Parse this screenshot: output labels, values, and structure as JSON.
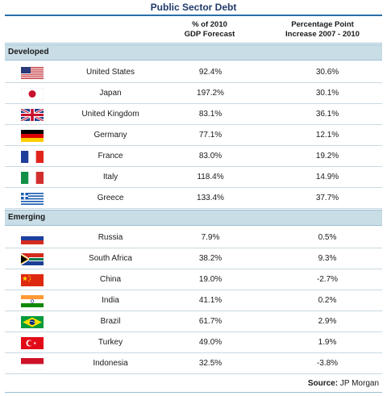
{
  "chart_data": {
    "type": "table",
    "title": "Public Sector Debt",
    "columns": [
      "% of 2010\nGDP Forecast",
      "Percentage Point\nIncrease 2007 - 2010"
    ],
    "column_lines": [
      [
        "% of 2010",
        "GDP Forecast"
      ],
      [
        "Percentage Point",
        "Increase 2007 - 2010"
      ]
    ],
    "groups": [
      {
        "name": "Developed",
        "rows": [
          {
            "country": "United States",
            "flag": "us-flag-icon",
            "gdp": "92.4%",
            "increase": "30.6%"
          },
          {
            "country": "Japan",
            "flag": "japan-flag-icon",
            "gdp": "197.2%",
            "increase": "30.1%"
          },
          {
            "country": "United Kingdom",
            "flag": "uk-flag-icon",
            "gdp": "83.1%",
            "increase": "36.1%"
          },
          {
            "country": "Germany",
            "flag": "germany-flag-icon",
            "gdp": "77.1%",
            "increase": "12.1%"
          },
          {
            "country": "France",
            "flag": "france-flag-icon",
            "gdp": "83.0%",
            "increase": "19.2%"
          },
          {
            "country": "Italy",
            "flag": "italy-flag-icon",
            "gdp": "118.4%",
            "increase": "14.9%"
          },
          {
            "country": "Greece",
            "flag": "greece-flag-icon",
            "gdp": "133.4%",
            "increase": "37.7%"
          }
        ]
      },
      {
        "name": "Emerging",
        "rows": [
          {
            "country": "Russia",
            "flag": "russia-flag-icon",
            "gdp": "7.9%",
            "increase": "0.5%"
          },
          {
            "country": "South Africa",
            "flag": "south-africa-flag-icon",
            "gdp": "38.2%",
            "increase": "9.3%"
          },
          {
            "country": "China",
            "flag": "china-flag-icon",
            "gdp": "19.0%",
            "increase": "-2.7%"
          },
          {
            "country": "India",
            "flag": "india-flag-icon",
            "gdp": "41.1%",
            "increase": "0.2%"
          },
          {
            "country": "Brazil",
            "flag": "brazil-flag-icon",
            "gdp": "61.7%",
            "increase": "2.9%"
          },
          {
            "country": "Turkey",
            "flag": "turkey-flag-icon",
            "gdp": "49.0%",
            "increase": "1.9%"
          },
          {
            "country": "Indonesia",
            "flag": "indonesia-flag-icon",
            "gdp": "32.5%",
            "increase": "-3.8%"
          }
        ]
      }
    ],
    "source_label": "Source:",
    "source_value": " JP Morgan"
  }
}
